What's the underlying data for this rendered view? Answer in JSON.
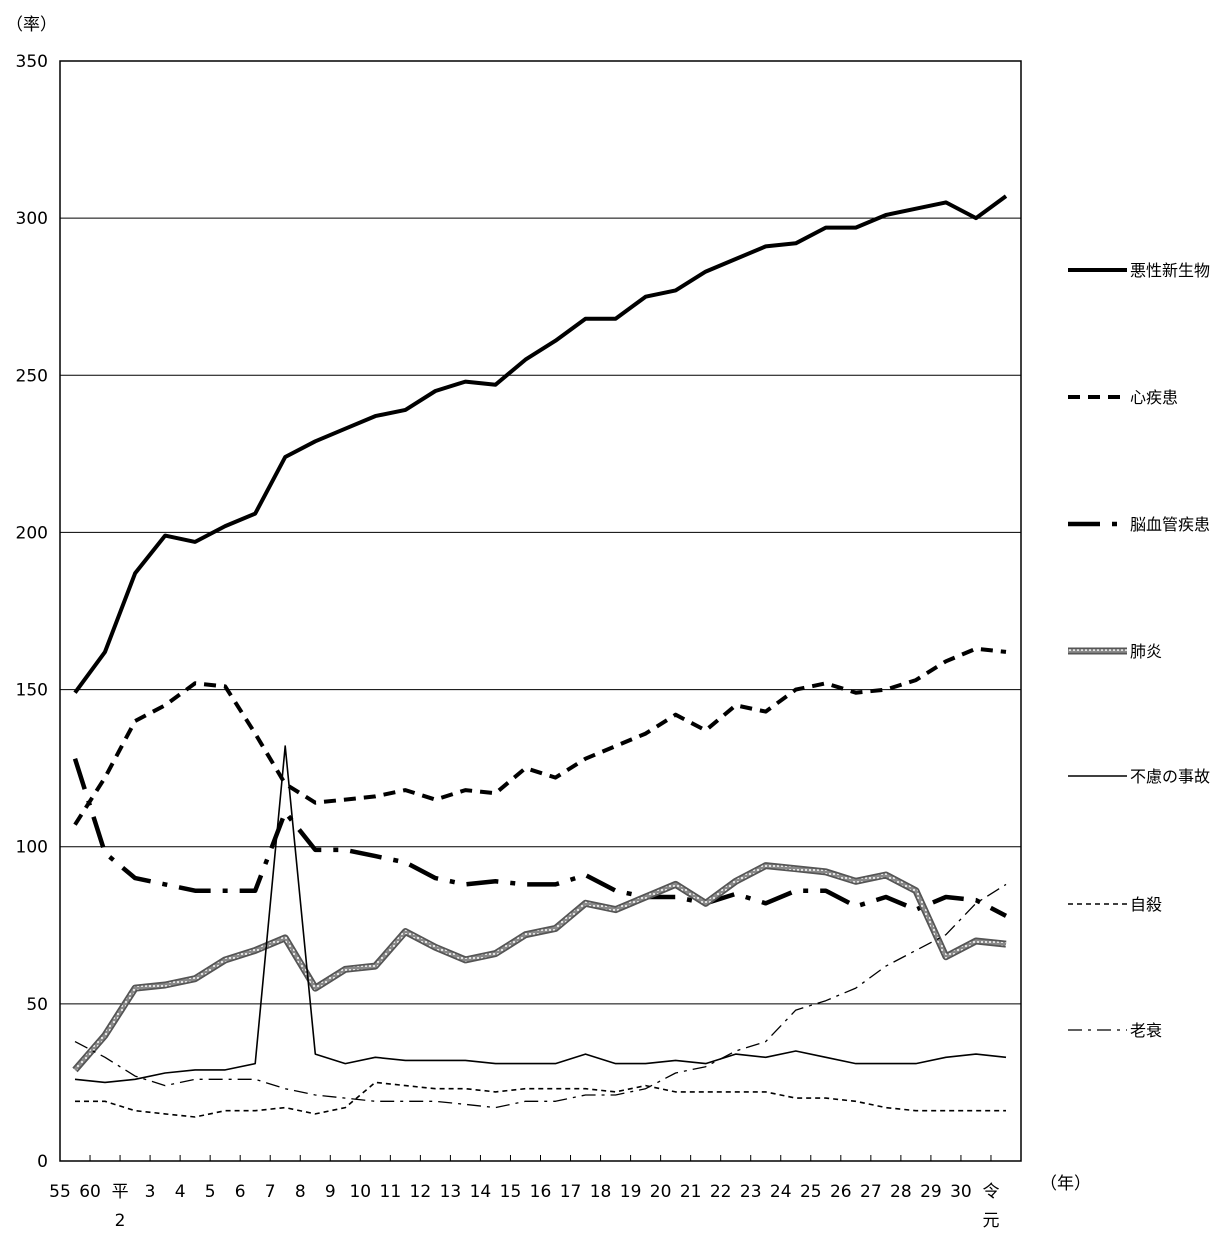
{
  "chart_data": {
    "type": "line",
    "title": "",
    "ylabel": "（率）",
    "xlabel": "（年）",
    "ylim": [
      0,
      350
    ],
    "yticks": [
      "0",
      "50",
      "100",
      "150",
      "200",
      "250",
      "300",
      "350"
    ],
    "grid": "horizontal",
    "legend_position": "right",
    "categories": [
      "55",
      "60",
      "平2",
      "3",
      "4",
      "5",
      "6",
      "7",
      "8",
      "9",
      "10",
      "11",
      "12",
      "13",
      "14",
      "15",
      "16",
      "17",
      "18",
      "19",
      "20",
      "21",
      "22",
      "23",
      "24",
      "25",
      "26",
      "27",
      "28",
      "29",
      "30",
      "令元"
    ],
    "category_labels": [
      [
        "55"
      ],
      [
        "60"
      ],
      [
        "平",
        "2"
      ],
      [
        "3"
      ],
      [
        "4"
      ],
      [
        "5"
      ],
      [
        "6"
      ],
      [
        "7"
      ],
      [
        "8"
      ],
      [
        "9"
      ],
      [
        "10"
      ],
      [
        "11"
      ],
      [
        "12"
      ],
      [
        "13"
      ],
      [
        "14"
      ],
      [
        "15"
      ],
      [
        "16"
      ],
      [
        "17"
      ],
      [
        "18"
      ],
      [
        "19"
      ],
      [
        "20"
      ],
      [
        "21"
      ],
      [
        "22"
      ],
      [
        "23"
      ],
      [
        "24"
      ],
      [
        "25"
      ],
      [
        "26"
      ],
      [
        "27"
      ],
      [
        "28"
      ],
      [
        "29"
      ],
      [
        "30"
      ],
      [
        "令",
        "元"
      ]
    ],
    "series": [
      {
        "name": "悪性新生物",
        "style": "thick-solid",
        "color": "#000000",
        "values": [
          149,
          162,
          187,
          199,
          197,
          202,
          206,
          224,
          229,
          233,
          237,
          239,
          245,
          248,
          247,
          255,
          261,
          268,
          268,
          275,
          277,
          283,
          287,
          291,
          292,
          297,
          297,
          301,
          303,
          305,
          300,
          307
        ]
      },
      {
        "name": "心疾患",
        "style": "dashed",
        "color": "#000000",
        "values": [
          107,
          122,
          140,
          145,
          152,
          151,
          136,
          120,
          114,
          115,
          116,
          118,
          115,
          118,
          117,
          125,
          122,
          128,
          132,
          136,
          142,
          137,
          145,
          143,
          150,
          152,
          149,
          150,
          153,
          159,
          163,
          162
        ]
      },
      {
        "name": "脳血管疾患",
        "style": "long-dash-dot",
        "color": "#000000",
        "values": [
          128,
          98,
          90,
          88,
          86,
          86,
          86,
          111,
          99,
          99,
          97,
          95,
          90,
          88,
          89,
          88,
          88,
          91,
          86,
          84,
          84,
          82,
          85,
          82,
          86,
          86,
          81,
          84,
          80,
          84,
          83,
          78
        ]
      },
      {
        "name": "肺炎",
        "style": "double-grey",
        "color": "#555555",
        "values": [
          29,
          40,
          55,
          56,
          58,
          64,
          67,
          71,
          55,
          61,
          62,
          73,
          68,
          64,
          66,
          72,
          74,
          82,
          80,
          84,
          88,
          82,
          89,
          94,
          93,
          92,
          89,
          91,
          86,
          65,
          70,
          69
        ]
      },
      {
        "name": "不慮の事故",
        "style": "thin-solid",
        "color": "#000000",
        "values": [
          26,
          25,
          26,
          28,
          29,
          29,
          31,
          132,
          34,
          31,
          33,
          32,
          32,
          32,
          31,
          31,
          31,
          34,
          31,
          31,
          32,
          31,
          34,
          33,
          35,
          33,
          31,
          31,
          31,
          33,
          34,
          33
        ]
      },
      {
        "name": "自殺",
        "style": "thin-dashed",
        "color": "#000000",
        "values": [
          19,
          19,
          16,
          15,
          14,
          16,
          16,
          17,
          15,
          17,
          25,
          24,
          23,
          23,
          22,
          23,
          23,
          23,
          22,
          24,
          22,
          22,
          22,
          22,
          20,
          20,
          19,
          17,
          16,
          16,
          16,
          16
        ]
      },
      {
        "name": "老衰",
        "style": "thin-dash-dot",
        "color": "#000000",
        "values": [
          38,
          33,
          27,
          24,
          26,
          26,
          26,
          23,
          21,
          20,
          19,
          19,
          19,
          18,
          17,
          19,
          19,
          21,
          21,
          23,
          28,
          30,
          35,
          38,
          48,
          51,
          55,
          62,
          67,
          72,
          82,
          88
        ]
      }
    ]
  }
}
